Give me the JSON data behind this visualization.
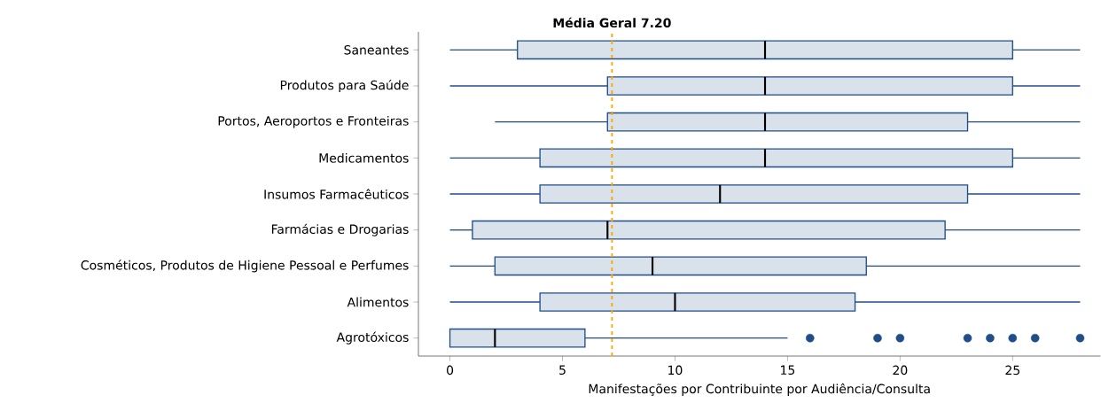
{
  "chart_data": {
    "type": "box",
    "orientation": "horizontal",
    "xlabel": "Manifestações por Contribuinte por Audiência/Consulta",
    "categories": [
      "Saneantes",
      "Produtos para Saúde",
      "Portos, Aeroportos e Fronteiras",
      "Medicamentos",
      "Insumos Farmacêuticos",
      "Farmácias e Drogarias",
      "Cosméticos, Produtos de Higiene Pessoal e Perfumes",
      "Alimentos",
      "Agrotóxicos"
    ],
    "color": "#1f4e89",
    "boxes": [
      {
        "low": 0,
        "q1": 3,
        "median": 14,
        "q3": 25,
        "high": 28
      },
      {
        "low": 0,
        "q1": 7,
        "median": 14,
        "q3": 25,
        "high": 28
      },
      {
        "low": 2,
        "q1": 7,
        "median": 14,
        "q3": 23,
        "high": 28
      },
      {
        "low": 0,
        "q1": 4,
        "median": 14,
        "q3": 25,
        "high": 28
      },
      {
        "low": 0,
        "q1": 4,
        "median": 12,
        "q3": 23,
        "high": 28
      },
      {
        "low": 0,
        "q1": 1,
        "median": 7,
        "q3": 22,
        "high": 28
      },
      {
        "low": 0,
        "q1": 2,
        "median": 9,
        "q3": 18.5,
        "high": 28
      },
      {
        "low": 0,
        "q1": 4,
        "median": 10,
        "q3": 18,
        "high": 28
      },
      {
        "low": 0,
        "q1": 0,
        "median": 2,
        "q3": 6,
        "high": 15,
        "outliers": [
          16,
          19,
          20,
          23,
          24,
          25,
          26,
          28
        ]
      }
    ],
    "xlim": [
      -1.4,
      28.9
    ],
    "xticks": [
      0,
      5,
      10,
      15,
      20,
      25
    ],
    "ref_lines": [
      {
        "axis": "x",
        "value": 7.2,
        "label": "Média Geral 7.20",
        "color": "#ffa500",
        "line_style": "dashed"
      }
    ],
    "grid": false
  }
}
